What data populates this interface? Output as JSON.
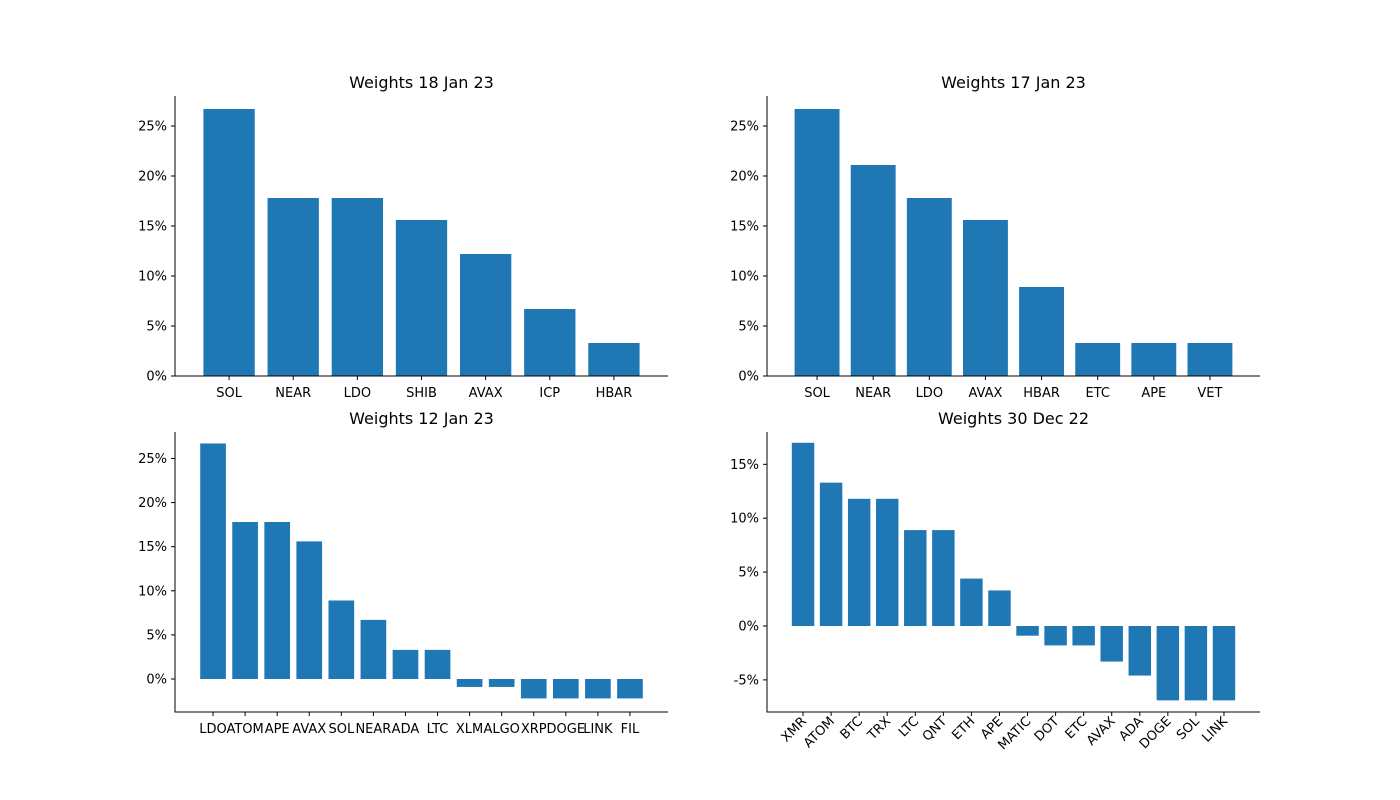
{
  "chart_data": [
    {
      "type": "bar",
      "title": "Weights 18 Jan 23",
      "categories": [
        "SOL",
        "NEAR",
        "LDO",
        "SHIB",
        "AVAX",
        "ICP",
        "HBAR"
      ],
      "values": [
        26.7,
        17.8,
        17.8,
        15.6,
        12.2,
        6.7,
        3.3
      ],
      "unit": "%",
      "ylim": [
        0,
        28
      ],
      "yticks": [
        0,
        5,
        10,
        15,
        20,
        25
      ],
      "ytick_labels": [
        "0%",
        "5%",
        "10%",
        "15%",
        "20%",
        "25%"
      ],
      "color": "#1f77b4",
      "grid": false
    },
    {
      "type": "bar",
      "title": "Weights 17 Jan 23",
      "categories": [
        "SOL",
        "NEAR",
        "LDO",
        "AVAX",
        "HBAR",
        "ETC",
        "APE",
        "VET"
      ],
      "values": [
        26.7,
        21.1,
        17.8,
        15.6,
        8.9,
        3.3,
        3.3,
        3.3
      ],
      "unit": "%",
      "ylim": [
        0,
        28
      ],
      "yticks": [
        0,
        5,
        10,
        15,
        20,
        25
      ],
      "ytick_labels": [
        "0%",
        "5%",
        "10%",
        "15%",
        "20%",
        "25%"
      ],
      "color": "#1f77b4",
      "grid": false
    },
    {
      "type": "bar",
      "title": "Weights 12 Jan 23",
      "categories": [
        "LDO",
        "ATOM",
        "APE",
        "AVAX",
        "SOL",
        "NEAR",
        "ADA",
        "LTC",
        "XLM",
        "ALGO",
        "XRP",
        "DOGE",
        "LINK",
        "FIL"
      ],
      "values": [
        26.7,
        17.8,
        17.8,
        15.6,
        8.9,
        6.7,
        3.3,
        3.3,
        -0.9,
        -0.9,
        -2.2,
        -2.2,
        -2.2,
        -2.2
      ],
      "unit": "%",
      "ylim": [
        -3.8,
        28
      ],
      "yticks": [
        0,
        5,
        10,
        15,
        20,
        25
      ],
      "ytick_labels": [
        "0%",
        "5%",
        "10%",
        "15%",
        "20%",
        "25%"
      ],
      "color": "#1f77b4",
      "grid": false
    },
    {
      "type": "bar",
      "title": "Weights 30 Dec 22",
      "categories": [
        "XMR",
        "ATOM",
        "BTC",
        "TRX",
        "LTC",
        "QNT",
        "ETH",
        "APE",
        "MATIC",
        "DOT",
        "ETC",
        "AVAX",
        "ADA",
        "DOGE",
        "SOL",
        "LINK"
      ],
      "values": [
        17.0,
        13.3,
        11.8,
        11.8,
        8.9,
        8.9,
        4.4,
        3.3,
        -0.9,
        -1.8,
        -1.8,
        -3.3,
        -4.6,
        -6.9,
        -6.9,
        -6.9
      ],
      "unit": "%",
      "ylim": [
        -8.2,
        18.0
      ],
      "yticks": [
        -5,
        0,
        5,
        10,
        15
      ],
      "ytick_labels": [
        "-5%",
        "0%",
        "5%",
        "10%",
        "15%"
      ],
      "rotated_xticks": true,
      "color": "#1f77b4",
      "grid": false
    }
  ]
}
